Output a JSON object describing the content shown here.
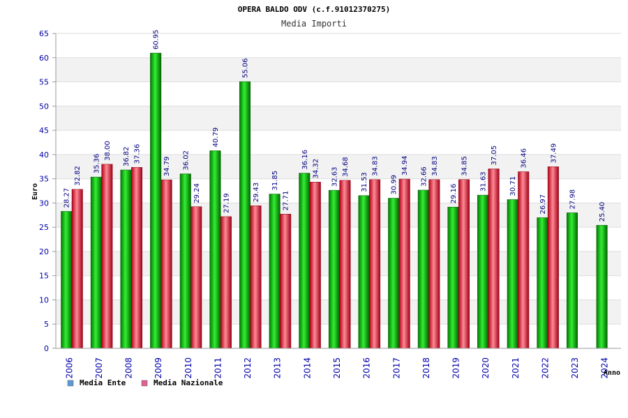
{
  "chart_data": {
    "type": "bar",
    "title": "OPERA BALDO ODV (c.f.91012370275)",
    "subtitle": "Media Importi",
    "xlabel": "Anno",
    "ylabel": "Euro",
    "ylim": [
      0,
      65
    ],
    "yticks": [
      0,
      5,
      10,
      15,
      20,
      25,
      30,
      35,
      40,
      45,
      50,
      55,
      60,
      65
    ],
    "categories": [
      "2006",
      "2007",
      "2008",
      "2009",
      "2010",
      "2011",
      "2012",
      "2013",
      "2014",
      "2015",
      "2016",
      "2017",
      "2018",
      "2019",
      "2020",
      "2021",
      "2022",
      "2023",
      "2024"
    ],
    "series": [
      {
        "name": "Media Ente",
        "color": "#00aa00",
        "legend_color": "#5b9bd5",
        "values": [
          28.27,
          35.36,
          36.82,
          60.95,
          36.02,
          40.79,
          55.06,
          31.85,
          36.16,
          32.63,
          31.53,
          30.99,
          32.66,
          29.16,
          31.63,
          30.71,
          26.97,
          27.98,
          25.4
        ],
        "labels": [
          "28.27",
          "35.36",
          "36.82",
          "60.95",
          "36.02",
          "40.79",
          "55.06",
          "31.85",
          "36.16",
          "32.63",
          "31.53",
          "30.99",
          "32.66",
          "29.16",
          "31.63",
          "30.71",
          "26.97",
          "27.98",
          "25.40"
        ]
      },
      {
        "name": "Media Nazionale",
        "color": "#dd2233",
        "legend_color": "#e06090",
        "values": [
          32.82,
          38.0,
          37.36,
          34.79,
          29.24,
          27.19,
          29.43,
          27.71,
          34.32,
          34.68,
          34.83,
          34.94,
          34.83,
          34.85,
          37.05,
          36.46,
          37.49,
          null,
          null
        ],
        "labels": [
          "32.82",
          "38.00",
          "37.36",
          "34.79",
          "29.24",
          "27.19",
          "29.43",
          "27.71",
          "34.32",
          "34.68",
          "34.83",
          "34.94",
          "34.83",
          "34.85",
          "37.05",
          "36.46",
          "37.49",
          null,
          null
        ]
      }
    ],
    "grid": true,
    "legend_position": "bottom-left"
  }
}
